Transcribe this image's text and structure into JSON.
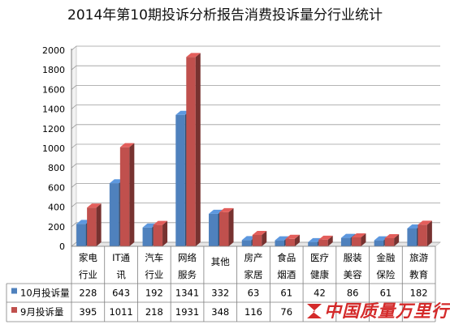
{
  "chart_data": {
    "type": "bar",
    "title": "2014年第10期投诉分析报告消费投诉量分行业统计",
    "categories": [
      [
        "家电",
        "行业"
      ],
      [
        "IT通",
        "讯"
      ],
      [
        "汽车",
        "行业"
      ],
      [
        "网络",
        "服务"
      ],
      [
        "其他"
      ],
      [
        "房产",
        "家居"
      ],
      [
        "食品",
        "烟酒"
      ],
      [
        "医疗",
        "健康"
      ],
      [
        "服装",
        "美容"
      ],
      [
        "金融",
        "保险"
      ],
      [
        "旅游",
        "教育"
      ]
    ],
    "series": [
      {
        "name": "10月投诉量",
        "color": "#4f81bd",
        "values": [
          228,
          643,
          192,
          1341,
          332,
          63,
          61,
          42,
          86,
          61,
          182
        ],
        "labels": [
          "228",
          "643",
          "192",
          "1341",
          "332",
          "63",
          "61",
          "42",
          "86",
          "61",
          "182"
        ]
      },
      {
        "name": "9月投诉量",
        "color": "#c0504d",
        "values": [
          395,
          1011,
          218,
          1931,
          348,
          116,
          76,
          67,
          91,
          83,
          220
        ],
        "labels": [
          "395",
          "1011",
          "218",
          "1931",
          "348",
          "116",
          "76",
          "",
          "",
          "",
          ""
        ]
      }
    ],
    "ylim": [
      0,
      2000
    ],
    "yticks": [
      0,
      200,
      400,
      600,
      800,
      1000,
      1200,
      1400,
      1600,
      1800,
      2000
    ],
    "grid": true,
    "legend": "table"
  },
  "watermark": "中国质量万里行"
}
